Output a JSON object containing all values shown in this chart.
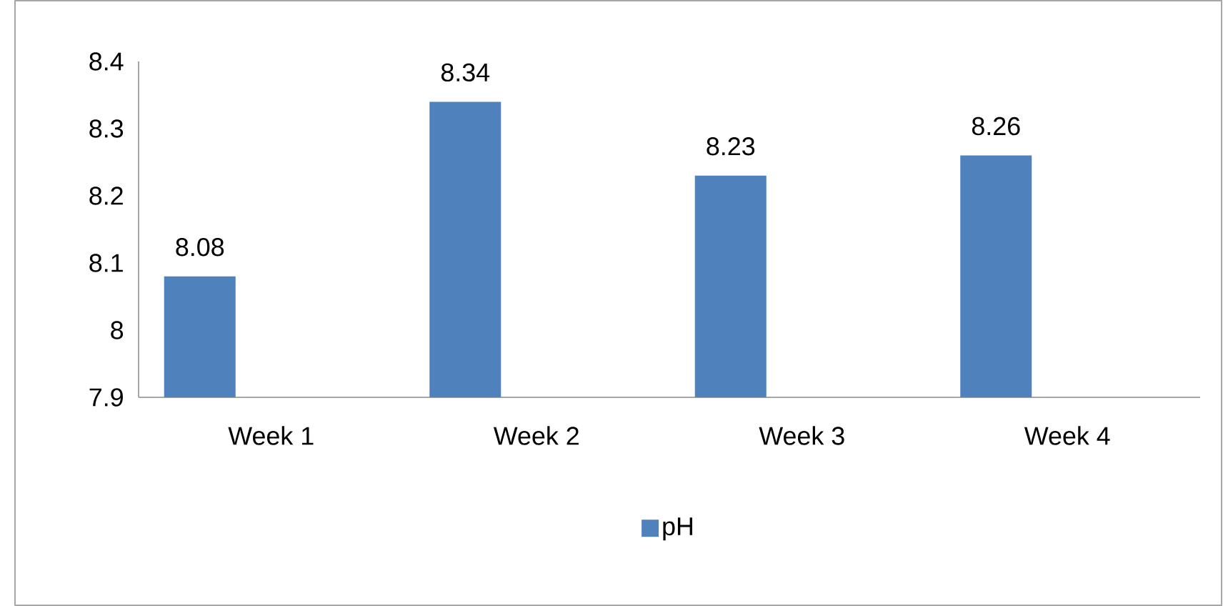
{
  "chart_data": {
    "type": "bar",
    "categories": [
      "Week 1",
      "Week 2",
      "Week 3",
      "Week 4"
    ],
    "series": [
      {
        "name": "pH",
        "color": "#4f81bd",
        "values": [
          8.08,
          8.34,
          8.23,
          8.26
        ]
      }
    ],
    "ylim": [
      7.9,
      8.4
    ],
    "yticks": [
      7.9,
      8,
      8.1,
      8.2,
      8.3,
      8.4
    ],
    "data_labels": true,
    "legend": "bottom",
    "grid": false
  }
}
